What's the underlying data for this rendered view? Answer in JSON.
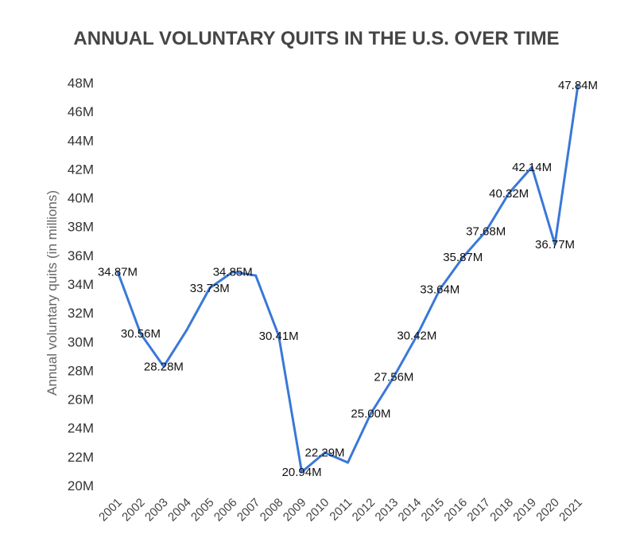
{
  "chart_data": {
    "type": "line",
    "title": "ANNUAL VOLUNTARY QUITS IN THE U.S. OVER TIME",
    "xlabel": "",
    "ylabel": "Annual voluntary quits (in millions)",
    "ylim": [
      20,
      48
    ],
    "yticks": [
      "20M",
      "22M",
      "24M",
      "26M",
      "28M",
      "30M",
      "32M",
      "34M",
      "36M",
      "38M",
      "40M",
      "42M",
      "44M",
      "46M",
      "48M"
    ],
    "grid": false,
    "line_color": "#3a78d8",
    "categories": [
      "2001",
      "2002",
      "2003",
      "2004",
      "2005",
      "2006",
      "2007",
      "2008",
      "2009",
      "2010",
      "2011",
      "2012",
      "2013",
      "2014",
      "2015",
      "2016",
      "2017",
      "2018",
      "2019",
      "2020",
      "2021"
    ],
    "series": [
      {
        "values": [
          34.87,
          30.56,
          28.28,
          30.8,
          33.73,
          34.85,
          34.6,
          30.41,
          20.94,
          22.29,
          21.6,
          25.0,
          27.56,
          30.42,
          33.64,
          35.87,
          37.68,
          40.32,
          42.14,
          36.77,
          47.84
        ],
        "labels": [
          "34.87M",
          "30.56M",
          "28.28M",
          null,
          "33.73M",
          "34.85M",
          null,
          "30.41M",
          "20.94M",
          "22.29M",
          null,
          "25.00M",
          "27.56M",
          "30.42M",
          "33.64M",
          "35.87M",
          "37.68M",
          "40.32M",
          "42.14M",
          "36.77M",
          "47.84M"
        ]
      }
    ]
  }
}
